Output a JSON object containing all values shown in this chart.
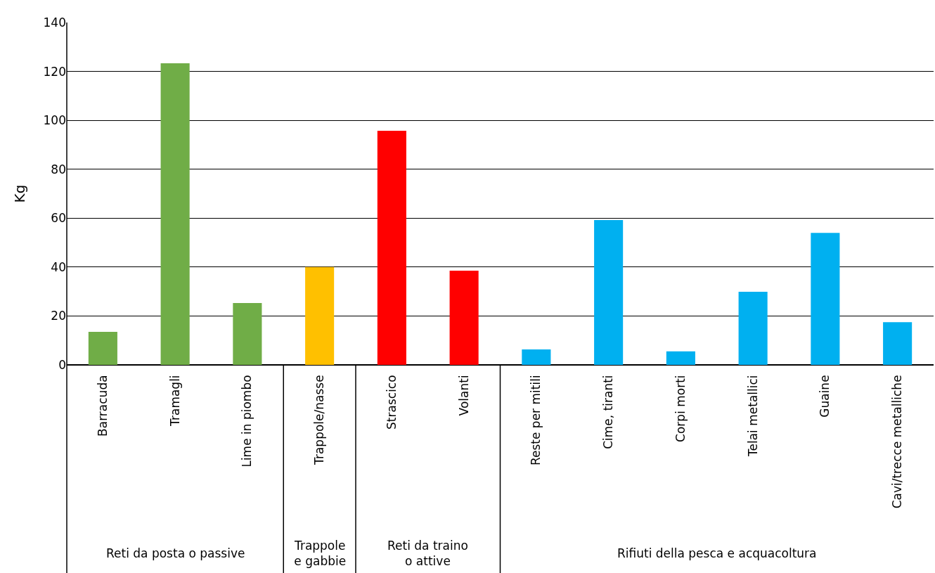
{
  "chart_data": {
    "type": "bar",
    "ylabel": "Kg",
    "categories": [
      "Barracuda",
      "Tramagli",
      "Lime in piombo",
      "Trappole/nasse",
      "Strascico",
      "Volanti",
      "Reste per mitili",
      "Cime, tiranti",
      "Corpi morti",
      "Telai metallici",
      "Guaine",
      "Cavi/trecce metalliche"
    ],
    "values": [
      13.5,
      123.3,
      25.3,
      40,
      95.7,
      38.5,
      6.3,
      59.2,
      5.5,
      29.9,
      54,
      17.5
    ],
    "colors": [
      "#70ad47",
      "#70ad47",
      "#70ad47",
      "#ffc000",
      "#ff0000",
      "#ff0000",
      "#00b0f0",
      "#00b0f0",
      "#00b0f0",
      "#00b0f0",
      "#00b0f0",
      "#00b0f0"
    ],
    "ylim": [
      0,
      140
    ],
    "yticks": [
      0,
      20,
      40,
      60,
      80,
      100,
      120,
      140
    ],
    "grid": "y",
    "annotations": [
      "Reti da posta o passive",
      "Trappole\ne gabbie",
      "Reti da traino\no attive",
      "Rifiuti della pesca e acquacoltura"
    ]
  }
}
